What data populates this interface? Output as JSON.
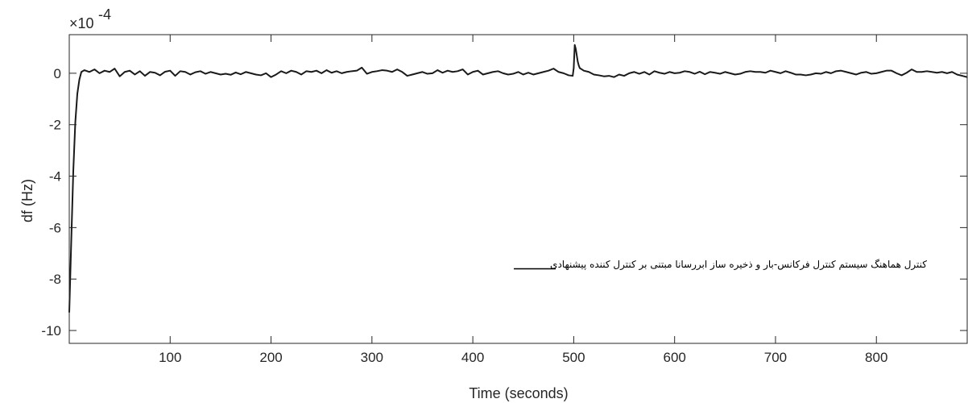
{
  "chart_data": {
    "type": "line",
    "xlabel": "Time (seconds)",
    "ylabel": "df (Hz)",
    "exponent_label": {
      "base": "×10",
      "power": "-4"
    },
    "xlim": [
      0,
      890
    ],
    "ylim": [
      -10.5,
      1.5
    ],
    "x_ticks": [
      100,
      200,
      300,
      400,
      500,
      600,
      700,
      800
    ],
    "y_ticks": [
      0,
      -2,
      -4,
      -6,
      -8,
      -10
    ],
    "grid": false,
    "legend": {
      "placement": "lower-right",
      "entries": [
        {
          "label": "کنترل هماهنگ سیستم کنترل فرکانس-بار و ذخیره ساز ابررسانا مبتنی بر کنترل کننده پیشنهادی",
          "color": "#000000"
        }
      ]
    },
    "series": [
      {
        "name": "کنترل هماهنگ سیستم کنترل فرکانس-بار و ذخیره ساز ابررسانا مبتنی بر کنترل کننده پیشنهادی",
        "color": "#1a1a1a",
        "x": [
          0,
          2,
          4,
          6,
          8,
          10,
          12,
          15,
          20,
          25,
          30,
          35,
          40,
          45,
          50,
          55,
          60,
          65,
          70,
          75,
          80,
          85,
          90,
          95,
          100,
          105,
          110,
          115,
          120,
          125,
          130,
          135,
          140,
          145,
          150,
          155,
          160,
          165,
          170,
          175,
          180,
          185,
          190,
          195,
          200,
          205,
          210,
          215,
          220,
          225,
          230,
          235,
          240,
          245,
          250,
          255,
          260,
          265,
          270,
          275,
          280,
          285,
          290,
          295,
          300,
          305,
          310,
          315,
          320,
          325,
          330,
          335,
          340,
          345,
          350,
          355,
          360,
          365,
          370,
          375,
          380,
          385,
          390,
          395,
          400,
          405,
          410,
          415,
          420,
          425,
          430,
          435,
          440,
          445,
          450,
          455,
          460,
          465,
          470,
          475,
          480,
          485,
          490,
          495,
          499,
          500,
          501,
          502,
          503,
          504,
          505,
          506,
          508,
          510,
          515,
          520,
          525,
          530,
          535,
          540,
          545,
          550,
          555,
          560,
          565,
          570,
          575,
          580,
          585,
          590,
          595,
          600,
          605,
          610,
          615,
          620,
          625,
          630,
          635,
          640,
          645,
          650,
          655,
          660,
          665,
          670,
          675,
          680,
          685,
          690,
          695,
          700,
          705,
          710,
          715,
          720,
          725,
          730,
          735,
          740,
          745,
          750,
          755,
          760,
          765,
          770,
          775,
          780,
          785,
          790,
          795,
          800,
          805,
          810,
          815,
          820,
          825,
          830,
          835,
          840,
          845,
          850,
          855,
          860,
          865,
          870,
          875,
          880,
          885,
          890
        ],
        "y": [
          -9.3,
          -6.5,
          -3.8,
          -1.9,
          -0.8,
          -0.25,
          0.05,
          0.12,
          0.05,
          0.15,
          0.0,
          0.1,
          0.05,
          0.18,
          -0.12,
          0.05,
          0.1,
          -0.05,
          0.08,
          -0.1,
          0.05,
          0.02,
          -0.08,
          0.06,
          0.1,
          -0.1,
          0.08,
          0.05,
          -0.05,
          0.04,
          0.08,
          -0.02,
          0.05,
          0.0,
          -0.05,
          -0.02,
          -0.06,
          0.03,
          -0.04,
          0.05,
          0.0,
          -0.05,
          -0.08,
          0.0,
          -0.15,
          -0.05,
          0.08,
          0.0,
          0.1,
          0.05,
          -0.05,
          0.08,
          0.05,
          0.1,
          0.0,
          0.12,
          0.02,
          0.08,
          0.0,
          0.05,
          0.08,
          0.1,
          0.22,
          -0.02,
          0.05,
          0.08,
          0.12,
          0.1,
          0.05,
          0.15,
          0.05,
          -0.1,
          -0.05,
          0.0,
          0.05,
          -0.02,
          0.0,
          0.12,
          0.02,
          0.1,
          0.05,
          0.08,
          0.15,
          -0.05,
          0.05,
          0.1,
          -0.05,
          0.0,
          0.05,
          0.08,
          0.0,
          -0.05,
          -0.02,
          0.05,
          -0.05,
          0.02,
          -0.05,
          0.0,
          0.05,
          0.1,
          0.18,
          0.05,
          0.0,
          -0.08,
          -0.1,
          0.2,
          1.1,
          0.95,
          0.7,
          0.45,
          0.3,
          0.2,
          0.15,
          0.1,
          0.05,
          -0.05,
          -0.08,
          -0.12,
          -0.1,
          -0.15,
          -0.05,
          -0.1,
          0.0,
          0.05,
          -0.02,
          0.05,
          -0.05,
          0.08,
          0.02,
          -0.02,
          0.05,
          0.0,
          0.02,
          0.08,
          0.05,
          -0.02,
          0.06,
          -0.04,
          0.05,
          0.02,
          -0.02,
          0.05,
          0.0,
          -0.05,
          -0.02,
          0.05,
          0.08,
          0.05,
          0.05,
          0.02,
          0.1,
          0.05,
          0.0,
          0.08,
          0.02,
          -0.05,
          -0.05,
          -0.08,
          -0.05,
          0.0,
          -0.02,
          0.05,
          0.0,
          0.08,
          0.1,
          0.05,
          0.0,
          -0.05,
          0.02,
          0.05,
          -0.02,
          0.0,
          0.05,
          0.1,
          0.1,
          0.0,
          -0.08,
          0.02,
          0.15,
          0.05,
          0.05,
          0.08,
          0.05,
          0.02,
          0.05,
          0.0,
          0.05,
          -0.05,
          -0.1,
          -0.15
        ]
      }
    ]
  }
}
